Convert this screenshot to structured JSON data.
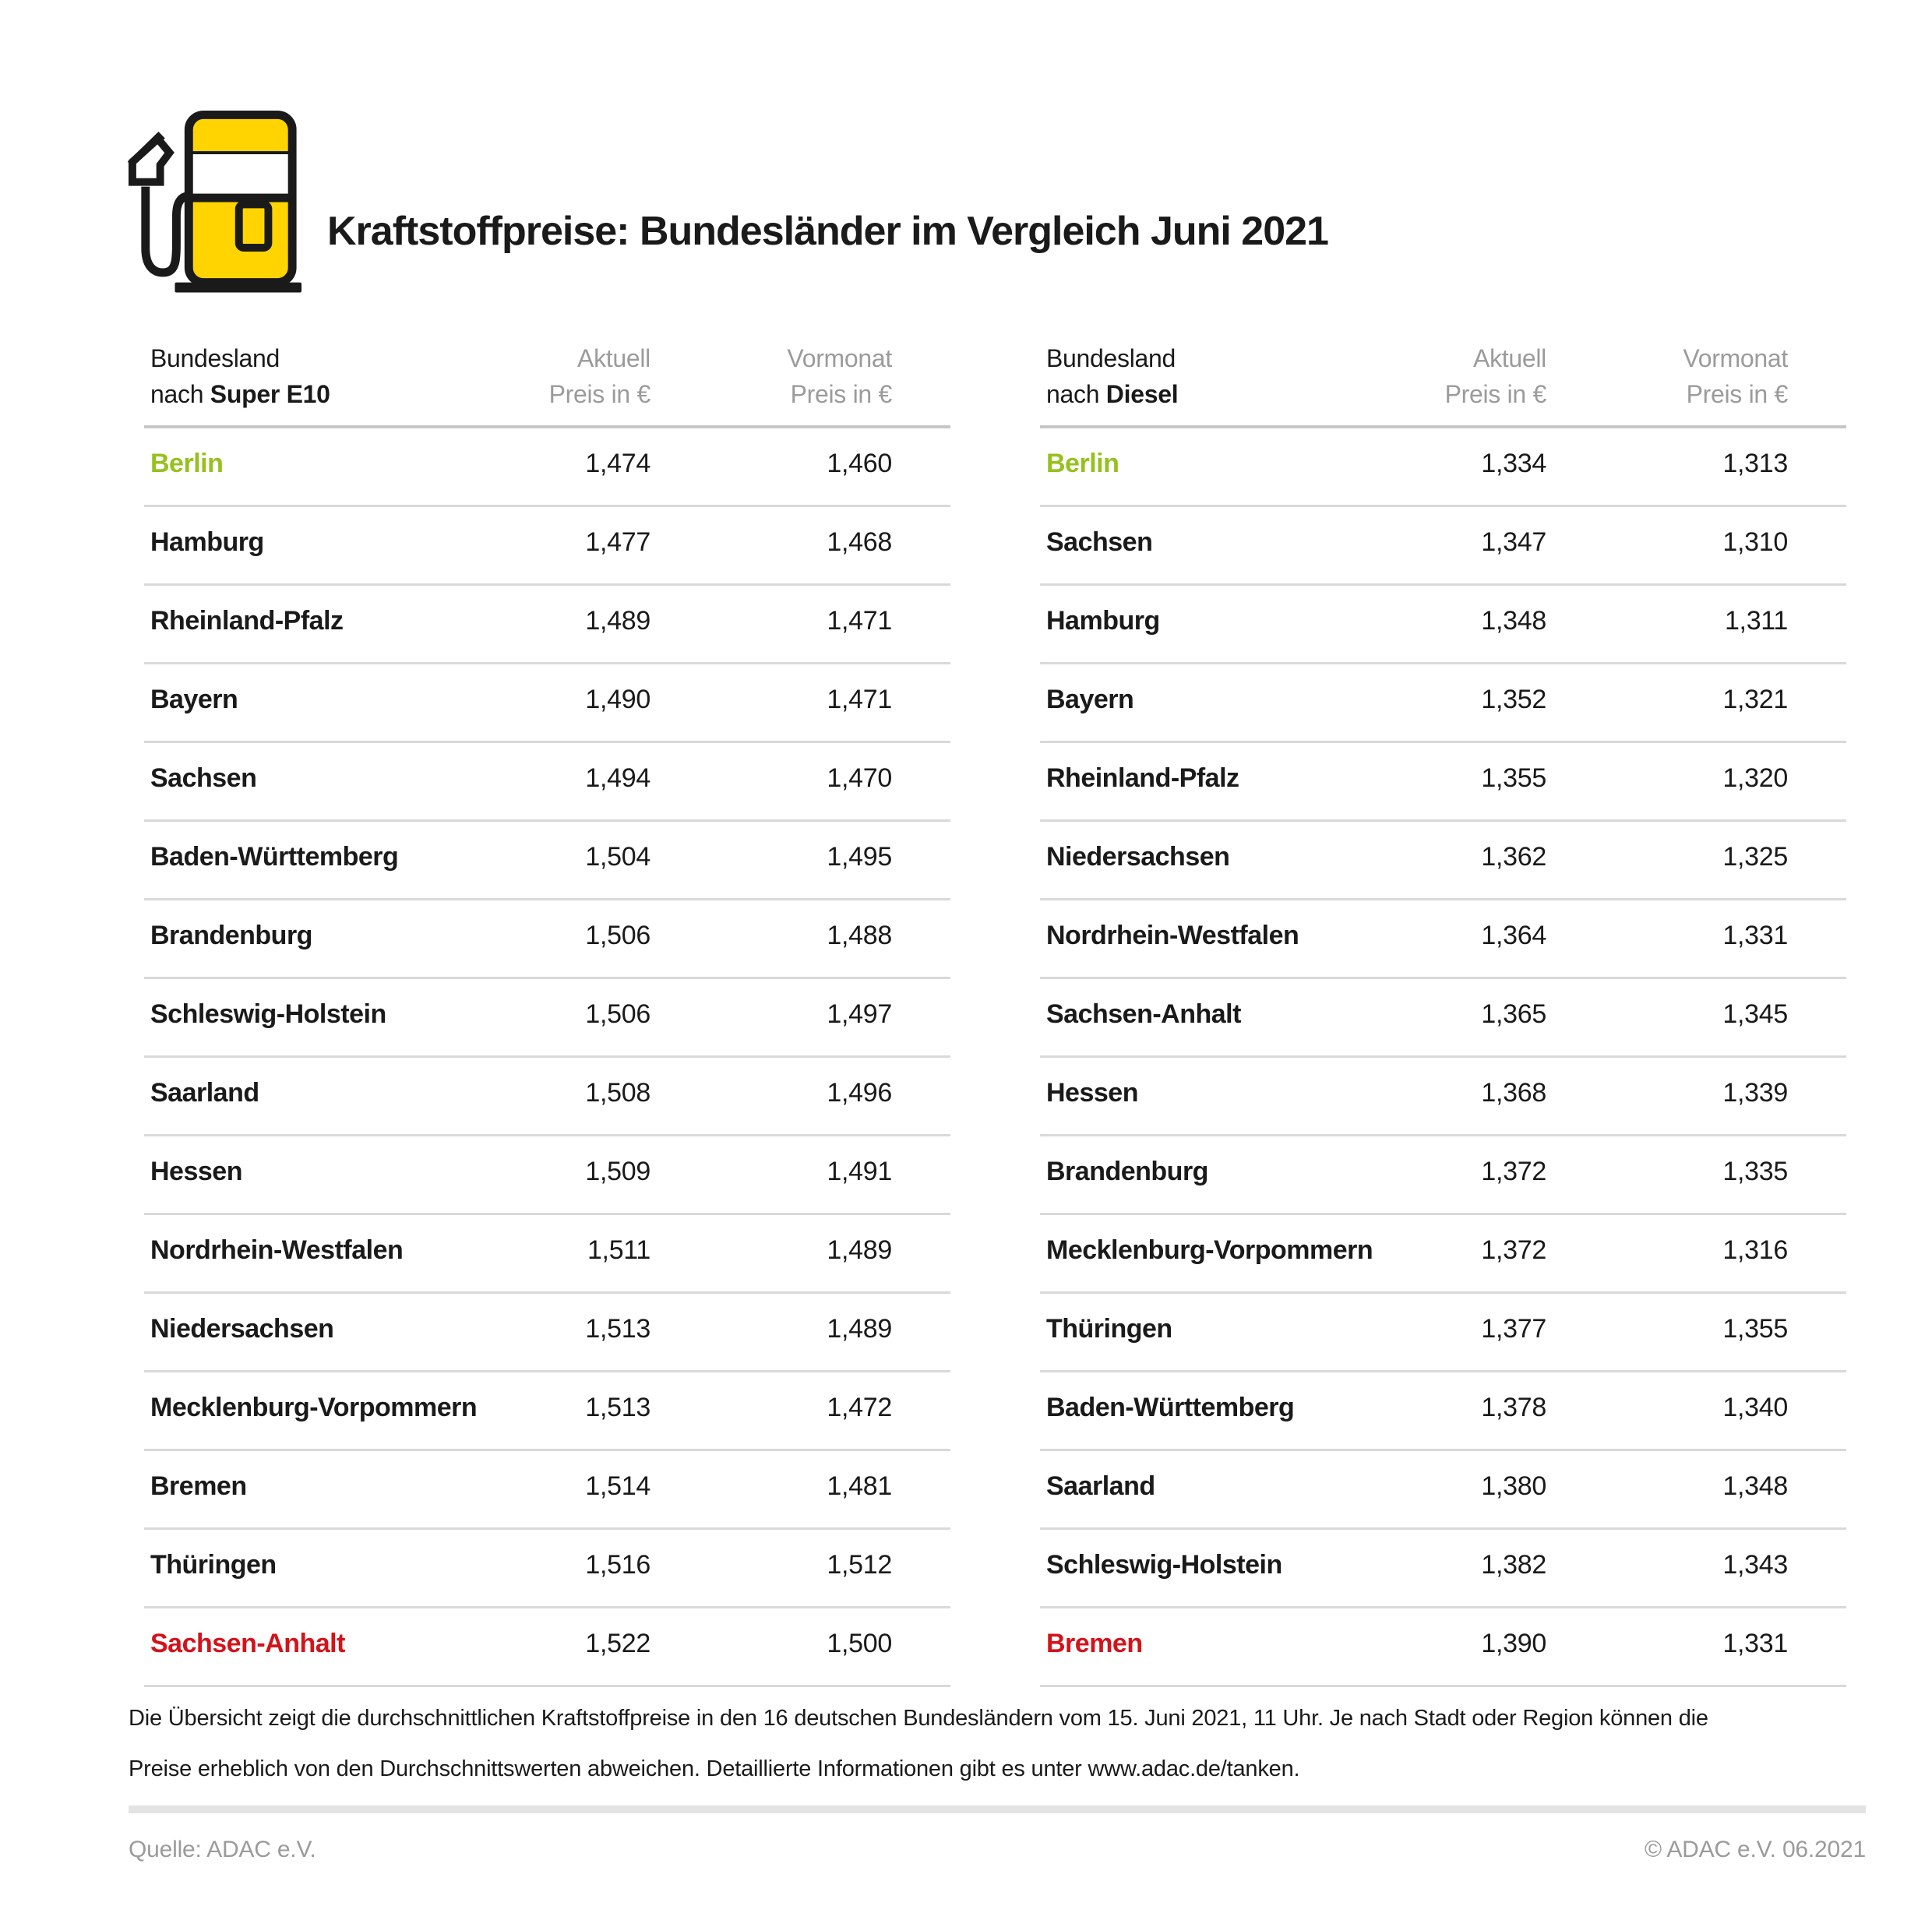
{
  "colors": {
    "green": "#96c11e",
    "red": "#d5121a",
    "yellow": "#ffd400",
    "black": "#1a1a1a",
    "gray_header": "#9b9b9b",
    "row_line": "#d9d9d9",
    "header_line": "#c6c6c6",
    "footer_divider": "#e3e3e3"
  },
  "icons": {
    "masthead": "fuel-pump-icon"
  },
  "header": {
    "title": "Kraftstoffpreise: Bundesländer im Vergleich Juni 2021"
  },
  "tables": [
    {
      "head": {
        "land_line1": "Bundesland",
        "land_line2_prefix": "nach ",
        "land_line2_fuel": "Super E10",
        "col2_line1": "Aktuell",
        "col2_line2": "Preis in €",
        "col3_line1": "Vormonat",
        "col3_line2": "Preis in €"
      },
      "rows": [
        {
          "land": "Berlin",
          "aktuell": "1,474",
          "vormonat": "1,460",
          "highlight": "green"
        },
        {
          "land": "Hamburg",
          "aktuell": "1,477",
          "vormonat": "1,468"
        },
        {
          "land": "Rheinland-Pfalz",
          "aktuell": "1,489",
          "vormonat": "1,471"
        },
        {
          "land": "Bayern",
          "aktuell": "1,490",
          "vormonat": "1,471"
        },
        {
          "land": "Sachsen",
          "aktuell": "1,494",
          "vormonat": "1,470"
        },
        {
          "land": "Baden-Württemberg",
          "aktuell": "1,504",
          "vormonat": "1,495"
        },
        {
          "land": "Brandenburg",
          "aktuell": "1,506",
          "vormonat": "1,488"
        },
        {
          "land": "Schleswig-Holstein",
          "aktuell": "1,506",
          "vormonat": "1,497"
        },
        {
          "land": "Saarland",
          "aktuell": "1,508",
          "vormonat": "1,496"
        },
        {
          "land": "Hessen",
          "aktuell": "1,509",
          "vormonat": "1,491"
        },
        {
          "land": "Nordrhein-Westfalen",
          "aktuell": "1,511",
          "vormonat": "1,489"
        },
        {
          "land": "Niedersachsen",
          "aktuell": "1,513",
          "vormonat": "1,489"
        },
        {
          "land": "Mecklenburg-Vorpommern",
          "aktuell": "1,513",
          "vormonat": "1,472"
        },
        {
          "land": "Bremen",
          "aktuell": "1,514",
          "vormonat": "1,481"
        },
        {
          "land": "Thüringen",
          "aktuell": "1,516",
          "vormonat": "1,512"
        },
        {
          "land": "Sachsen-Anhalt",
          "aktuell": "1,522",
          "vormonat": "1,500",
          "highlight": "red"
        }
      ]
    },
    {
      "head": {
        "land_line1": "Bundesland",
        "land_line2_prefix": "nach ",
        "land_line2_fuel": "Diesel",
        "col2_line1": "Aktuell",
        "col2_line2": "Preis in €",
        "col3_line1": "Vormonat",
        "col3_line2": "Preis in €"
      },
      "rows": [
        {
          "land": "Berlin",
          "aktuell": "1,334",
          "vormonat": "1,313",
          "highlight": "green"
        },
        {
          "land": "Sachsen",
          "aktuell": "1,347",
          "vormonat": "1,310"
        },
        {
          "land": "Hamburg",
          "aktuell": "1,348",
          "vormonat": "1,311"
        },
        {
          "land": "Bayern",
          "aktuell": "1,352",
          "vormonat": "1,321"
        },
        {
          "land": "Rheinland-Pfalz",
          "aktuell": "1,355",
          "vormonat": "1,320"
        },
        {
          "land": "Niedersachsen",
          "aktuell": "1,362",
          "vormonat": "1,325"
        },
        {
          "land": "Nordrhein-Westfalen",
          "aktuell": "1,364",
          "vormonat": "1,331"
        },
        {
          "land": "Sachsen-Anhalt",
          "aktuell": "1,365",
          "vormonat": "1,345"
        },
        {
          "land": "Hessen",
          "aktuell": "1,368",
          "vormonat": "1,339"
        },
        {
          "land": "Brandenburg",
          "aktuell": "1,372",
          "vormonat": "1,335"
        },
        {
          "land": "Mecklenburg-Vorpommern",
          "aktuell": "1,372",
          "vormonat": "1,316"
        },
        {
          "land": "Thüringen",
          "aktuell": "1,377",
          "vormonat": "1,355"
        },
        {
          "land": "Baden-Württemberg",
          "aktuell": "1,378",
          "vormonat": "1,340"
        },
        {
          "land": "Saarland",
          "aktuell": "1,380",
          "vormonat": "1,348"
        },
        {
          "land": "Schleswig-Holstein",
          "aktuell": "1,382",
          "vormonat": "1,343"
        },
        {
          "land": "Bremen",
          "aktuell": "1,390",
          "vormonat": "1,331",
          "highlight": "red"
        }
      ]
    }
  ],
  "footnote": {
    "line1": "Die Übersicht zeigt die durchschnittlichen Kraftstoffpreise in den 16 deutschen Bundesländern vom 15. Juni 2021, 11 Uhr. Je nach Stadt oder Region können die",
    "line2": "Preise erheblich von den Durchschnittswerten abweichen. Detaillierte Informationen gibt es unter www.adac.de/tanken."
  },
  "footer": {
    "source": "Quelle: ADAC e.V.",
    "copyright": "© ADAC e.V. 06.2021"
  },
  "chart_data": [
    {
      "type": "table",
      "title": "Bundesland nach Super E10",
      "columns": [
        "Bundesland",
        "Aktuell Preis in €",
        "Vormonat Preis in €"
      ],
      "rows": [
        [
          "Berlin",
          1.474,
          1.46
        ],
        [
          "Hamburg",
          1.477,
          1.468
        ],
        [
          "Rheinland-Pfalz",
          1.489,
          1.471
        ],
        [
          "Bayern",
          1.49,
          1.471
        ],
        [
          "Sachsen",
          1.494,
          1.47
        ],
        [
          "Baden-Württemberg",
          1.504,
          1.495
        ],
        [
          "Brandenburg",
          1.506,
          1.488
        ],
        [
          "Schleswig-Holstein",
          1.506,
          1.497
        ],
        [
          "Saarland",
          1.508,
          1.496
        ],
        [
          "Hessen",
          1.509,
          1.491
        ],
        [
          "Nordrhein-Westfalen",
          1.511,
          1.489
        ],
        [
          "Niedersachsen",
          1.513,
          1.489
        ],
        [
          "Mecklenburg-Vorpommern",
          1.513,
          1.472
        ],
        [
          "Bremen",
          1.514,
          1.481
        ],
        [
          "Thüringen",
          1.516,
          1.512
        ],
        [
          "Sachsen-Anhalt",
          1.522,
          1.5
        ]
      ],
      "annotations": {
        "cheapest_highlight": "Berlin (green)",
        "most_expensive_highlight": "Sachsen-Anhalt (red)"
      }
    },
    {
      "type": "table",
      "title": "Bundesland nach Diesel",
      "columns": [
        "Bundesland",
        "Aktuell Preis in €",
        "Vormonat Preis in €"
      ],
      "rows": [
        [
          "Berlin",
          1.334,
          1.313
        ],
        [
          "Sachsen",
          1.347,
          1.31
        ],
        [
          "Hamburg",
          1.348,
          1.311
        ],
        [
          "Bayern",
          1.352,
          1.321
        ],
        [
          "Rheinland-Pfalz",
          1.355,
          1.32
        ],
        [
          "Niedersachsen",
          1.362,
          1.325
        ],
        [
          "Nordrhein-Westfalen",
          1.364,
          1.331
        ],
        [
          "Sachsen-Anhalt",
          1.365,
          1.345
        ],
        [
          "Hessen",
          1.368,
          1.339
        ],
        [
          "Brandenburg",
          1.372,
          1.335
        ],
        [
          "Mecklenburg-Vorpommern",
          1.372,
          1.316
        ],
        [
          "Thüringen",
          1.377,
          1.355
        ],
        [
          "Baden-Württemberg",
          1.378,
          1.34
        ],
        [
          "Saarland",
          1.38,
          1.348
        ],
        [
          "Schleswig-Holstein",
          1.382,
          1.343
        ],
        [
          "Bremen",
          1.39,
          1.331
        ]
      ],
      "annotations": {
        "cheapest_highlight": "Berlin (green)",
        "most_expensive_highlight": "Bremen (red)"
      }
    }
  ]
}
